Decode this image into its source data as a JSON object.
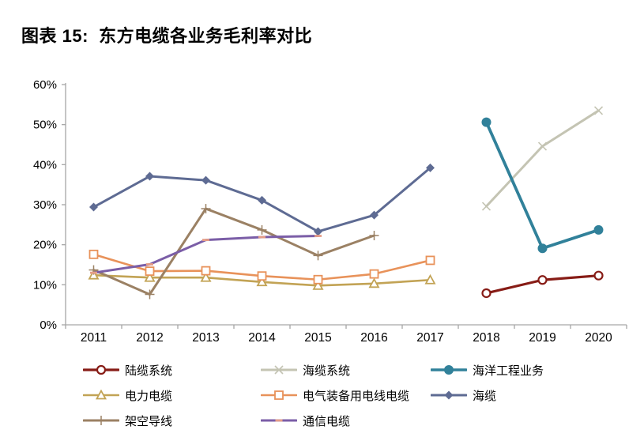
{
  "page": {
    "title": "图表 15:  东方电缆各业务毛利率对比"
  },
  "chart_data": {
    "type": "line",
    "title": "图表 15: 东方电缆各业务毛利率对比",
    "xlabel": "",
    "ylabel": "",
    "categories": [
      "2011",
      "2012",
      "2013",
      "2014",
      "2015",
      "2016",
      "2017",
      "2018",
      "2019",
      "2020"
    ],
    "ylim": [
      0,
      60
    ],
    "yticks": [
      0,
      10,
      20,
      30,
      40,
      50,
      60
    ],
    "ytick_suffix": "%",
    "grid": false,
    "legend_position": "bottom",
    "axis_color": "#a6a6a6",
    "text_color": "#000000",
    "series": [
      {
        "id": "land-cable-system",
        "name": "陆缆系统",
        "color": "#871c16",
        "marker": "circle-open",
        "linewidth": 3.2,
        "values": [
          null,
          null,
          null,
          null,
          null,
          null,
          null,
          7.9,
          11.2,
          12.3
        ],
        "legend_row": 0,
        "legend_col": 0
      },
      {
        "id": "submarine-cable-system",
        "name": "海缆系统",
        "color": "#c4c4b3",
        "marker": "x",
        "linewidth": 3,
        "values": [
          null,
          null,
          null,
          null,
          null,
          null,
          null,
          29.6,
          44.6,
          53.5
        ],
        "legend_row": 0,
        "legend_col": 1
      },
      {
        "id": "marine-engineering",
        "name": "海洋工程业务",
        "color": "#31819a",
        "marker": "circle-filled",
        "linewidth": 3.8,
        "values": [
          null,
          null,
          null,
          null,
          null,
          null,
          null,
          50.6,
          19.1,
          23.7
        ],
        "legend_row": 0,
        "legend_col": 2
      },
      {
        "id": "power-cable",
        "name": "电力电缆",
        "color": "#c2a355",
        "marker": "triangle-open",
        "linewidth": 2.6,
        "values": [
          12.4,
          11.8,
          11.8,
          10.7,
          9.8,
          10.3,
          11.2,
          null,
          null,
          null
        ],
        "legend_row": 1,
        "legend_col": 0
      },
      {
        "id": "electrical-equipment-wire-cable",
        "name": "电气装备用电线电缆",
        "color": "#e8925a",
        "marker": "square-open",
        "linewidth": 2.6,
        "values": [
          17.6,
          13.4,
          13.5,
          12.2,
          11.3,
          12.7,
          16.1,
          null,
          null,
          null
        ],
        "legend_row": 1,
        "legend_col": 1
      },
      {
        "id": "submarine-cable",
        "name": "海缆",
        "color": "#5e6b93",
        "marker": "diamond-filled",
        "linewidth": 3,
        "values": [
          29.4,
          37.1,
          36.1,
          31.1,
          23.3,
          27.4,
          39.2,
          null,
          null,
          null
        ],
        "legend_row": 1,
        "legend_col": 2
      },
      {
        "id": "overhead-conductor",
        "name": "架空导线",
        "color": "#9b8164",
        "marker": "plus",
        "linewidth": 3,
        "values": [
          13.7,
          7.6,
          29.0,
          23.7,
          17.3,
          22.3,
          null,
          null,
          null,
          null
        ],
        "legend_row": 2,
        "legend_col": 0
      },
      {
        "id": "communication-cable",
        "name": "通信电缆",
        "color": "#7b5ea7",
        "marker": "dash",
        "marker_color": "#e59d87",
        "linewidth": 3,
        "values": [
          13.0,
          15.1,
          21.2,
          21.9,
          22.2,
          null,
          null,
          null,
          null,
          null
        ],
        "legend_row": 2,
        "legend_col": 1
      }
    ]
  }
}
